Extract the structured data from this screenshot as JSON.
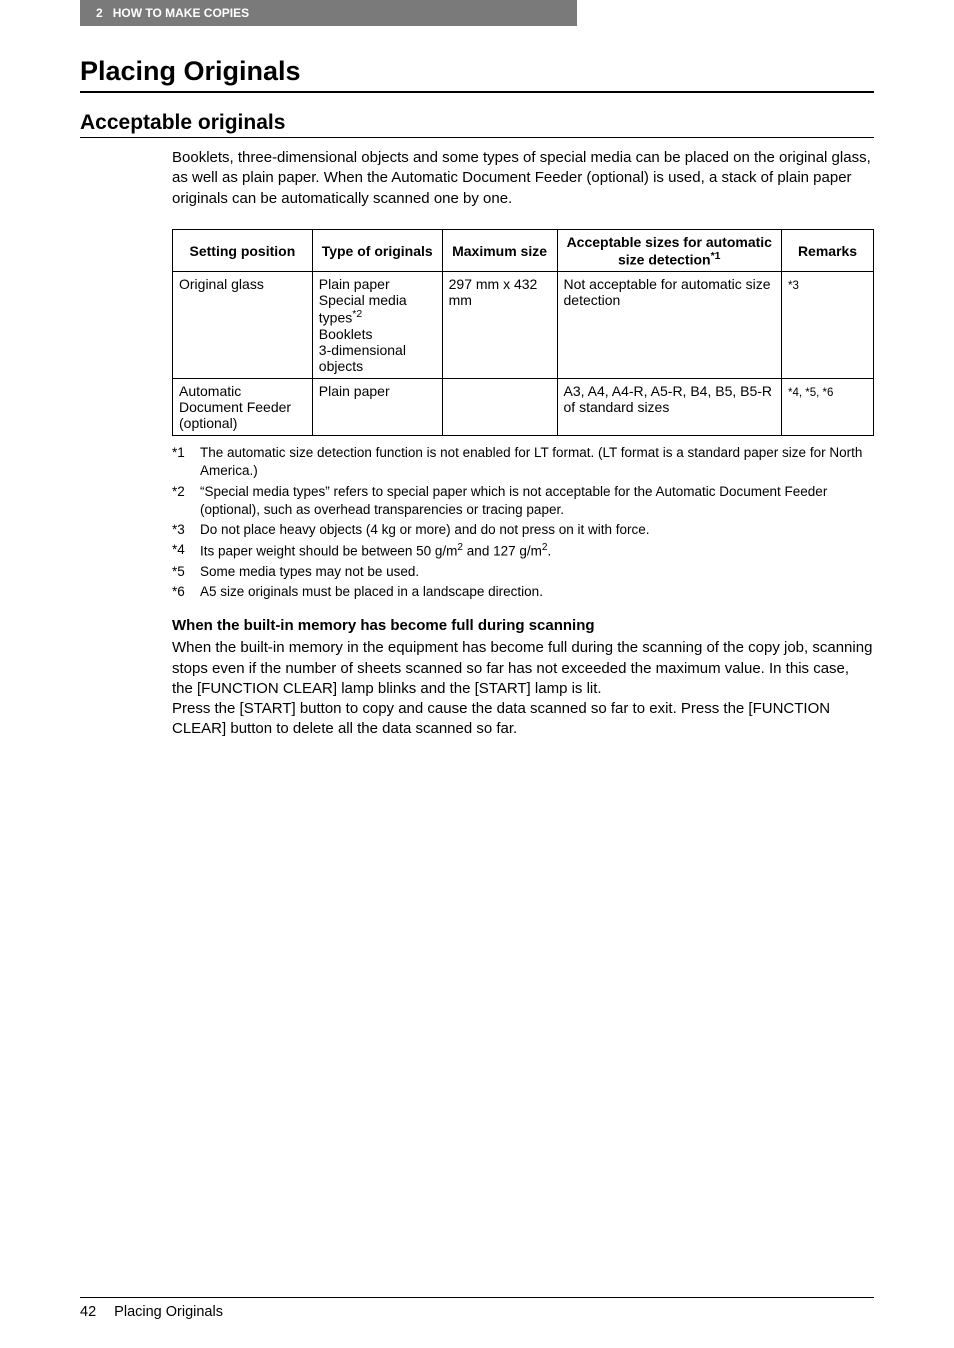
{
  "header": {
    "chapter_number": "2",
    "chapter_title": "HOW TO MAKE COPIES"
  },
  "h1": "Placing Originals",
  "h2": "Acceptable originals",
  "intro": "Booklets, three-dimensional objects and some types of special media can be placed on the original glass, as well as plain paper. When the Automatic Document Feeder (optional) is used, a stack of plain paper originals can be automatically scanned one by one.",
  "table": {
    "headers": {
      "c1": "Setting position",
      "c2": "Type of originals",
      "c3": "Maximum size",
      "c4_pre": "Acceptable sizes for automatic size detection",
      "c4_sup": "*1",
      "c5": "Remarks"
    },
    "rows": [
      {
        "c1": "Original glass",
        "c2_l1": "Plain paper",
        "c2_l2": "Special media types",
        "c2_sup": "*2",
        "c2_l3": "Booklets",
        "c2_l4": "3-dimensional objects",
        "c3": "297 mm x 432 mm",
        "c4": "Not acceptable for automatic size detection",
        "c5": "*3"
      },
      {
        "c1": "Automatic Document Feeder (optional)",
        "c2": "Plain paper",
        "c3": "",
        "c4": "A3, A4, A4-R, A5-R, B4, B5, B5-R of standard sizes",
        "c5": "*4, *5, *6"
      }
    ]
  },
  "notes": [
    {
      "k": "*1",
      "v": "The automatic size detection function is not enabled for LT format. (LT format is a standard paper size for North America.)"
    },
    {
      "k": "*2",
      "v": "“Special media types” refers to special paper which is not acceptable for the Automatic Document Feeder (optional), such as overhead transparencies or tracing paper."
    },
    {
      "k": "*3",
      "v": "Do not place heavy objects (4 kg or more) and do not press on it with force."
    },
    {
      "k": "*4",
      "v_pre": "Its paper weight should be between 50 g/m",
      "sup1": "2",
      "v_mid": " and 127 g/m",
      "sup2": "2",
      "v_post": "."
    },
    {
      "k": "*5",
      "v": "Some media types may not be used."
    },
    {
      "k": "*6",
      "v": "A5 size originals must be placed in a landscape direction."
    }
  ],
  "memory": {
    "heading": "When the built-in memory has become full during scanning",
    "body": "When the built-in memory in the equipment has become full during the scanning of the copy job, scanning stops even if the number of sheets scanned so far has not exceeded the maximum value. In this case, the [FUNCTION CLEAR] lamp blinks and the [START] lamp is lit.\nPress the [START] button to copy and cause the data scanned so far to exit. Press the [FUNCTION CLEAR] button to delete all the data scanned so far."
  },
  "footer": {
    "page_number": "42",
    "section": "Placing Originals"
  }
}
